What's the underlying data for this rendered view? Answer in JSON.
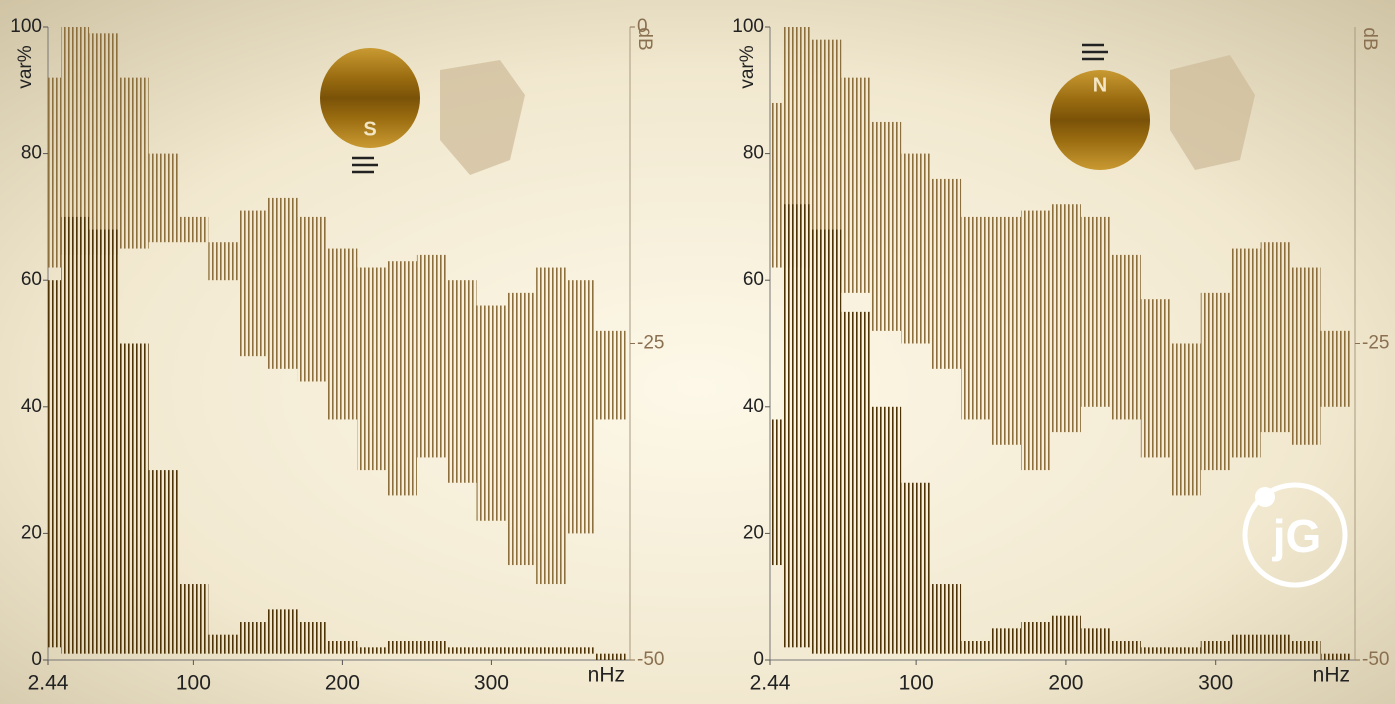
{
  "chart_data": [
    {
      "type": "range",
      "x_label": "nHz",
      "y_label": "var%",
      "y2_label": "dB",
      "annotation": "S",
      "x": [
        2.44,
        20,
        40,
        60,
        80,
        100,
        120,
        140,
        160,
        180,
        200,
        220,
        240,
        260,
        280,
        300,
        320,
        340,
        360,
        380
      ],
      "xlim": [
        2.44,
        393
      ],
      "xticks": [
        2.44,
        100,
        200,
        300
      ],
      "ylim": [
        0,
        100
      ],
      "yticks": [
        0,
        20,
        40,
        60,
        80,
        100
      ],
      "y2lim": [
        -50,
        0
      ],
      "y2ticks": [
        0,
        -25,
        -50
      ],
      "series": [
        {
          "axis": "y2",
          "color": "#8c6f3c",
          "values": [
            -4,
            0,
            -0.5,
            -4,
            -10,
            -15,
            -17,
            -14.5,
            -13.5,
            -15,
            -17.5,
            -19,
            -18.5,
            -18,
            -20,
            -22,
            -21,
            -19,
            -20,
            -24
          ],
          "lows": [
            -19,
            -18,
            -18,
            -17.5,
            -17,
            -17,
            -20,
            -26,
            -27,
            -28,
            -31,
            -35,
            -37,
            -34,
            -36,
            -39,
            -42.5,
            -44,
            -40,
            -31
          ]
        },
        {
          "color": "#4e3306",
          "values": [
            60,
            70,
            68,
            50,
            30,
            12,
            4,
            6,
            8,
            6,
            3,
            2,
            3,
            3,
            2,
            2,
            2,
            2,
            2,
            1
          ],
          "lows": [
            2,
            1,
            1,
            1,
            1,
            1,
            1,
            1,
            1,
            1,
            1,
            1,
            1,
            1,
            1,
            1,
            1,
            1,
            1,
            0
          ]
        }
      ]
    },
    {
      "type": "range",
      "x_label": "nHz",
      "y_label": "var%",
      "y2_label": "dB",
      "annotation": "N",
      "x": [
        2.44,
        20,
        40,
        60,
        80,
        100,
        120,
        140,
        160,
        180,
        200,
        220,
        240,
        260,
        280,
        300,
        320,
        340,
        360,
        380
      ],
      "xlim": [
        2.44,
        393
      ],
      "xticks": [
        2.44,
        100,
        200,
        300
      ],
      "ylim": [
        0,
        100
      ],
      "yticks": [
        0,
        20,
        40,
        60,
        80,
        100
      ],
      "y2lim": [
        -50,
        0
      ],
      "y2ticks": [
        -25,
        -50
      ],
      "series": [
        {
          "axis": "y2",
          "color": "#8c6f3c",
          "values": [
            -6,
            0,
            -1,
            -4,
            -7.5,
            -10,
            -12,
            -15,
            -15,
            -14.5,
            -14,
            -15,
            -18,
            -21.5,
            -25,
            -21,
            -17.5,
            -17,
            -19,
            -24
          ],
          "lows": [
            -19,
            -19,
            -20,
            -21,
            -24,
            -25,
            -27,
            -31,
            -33,
            -35,
            -32,
            -30,
            -31,
            -34,
            -37,
            -35,
            -34,
            -32,
            -33,
            -30
          ]
        },
        {
          "color": "#4e3306",
          "values": [
            38,
            72,
            68,
            55,
            40,
            28,
            12,
            3,
            5,
            6,
            7,
            5,
            3,
            2,
            2,
            3,
            4,
            4,
            3,
            1
          ],
          "lows": [
            15,
            2,
            1,
            1,
            1,
            1,
            1,
            1,
            1,
            1,
            1,
            1,
            1,
            1,
            1,
            1,
            1,
            1,
            1,
            0
          ]
        }
      ]
    }
  ],
  "watermark": "jG"
}
